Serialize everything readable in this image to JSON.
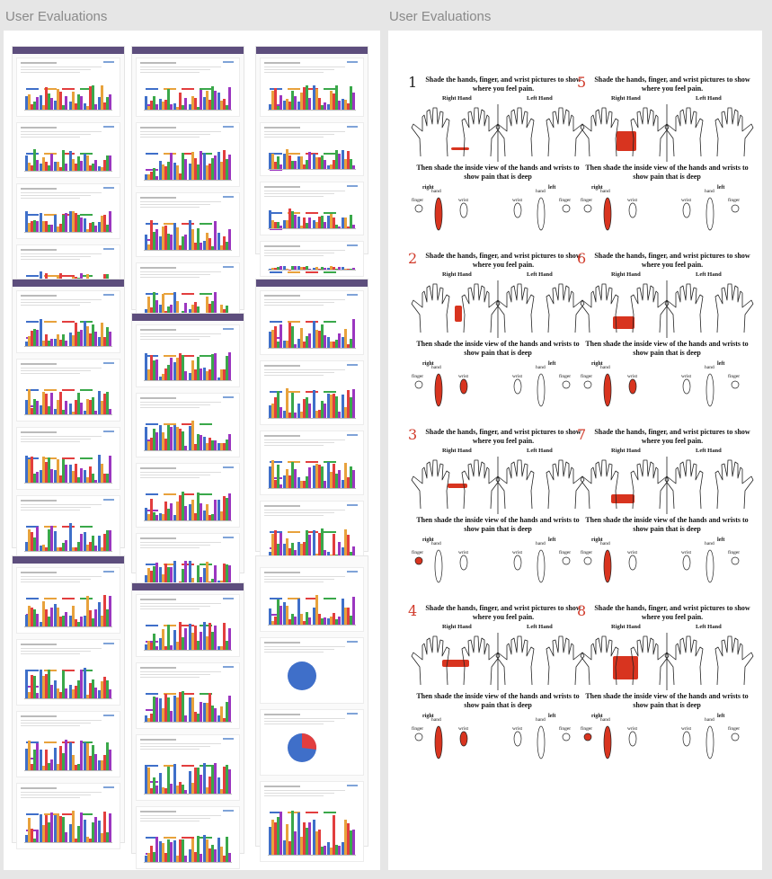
{
  "frames": {
    "left_title": "User Evaluations",
    "right_title": "User Evaluations"
  },
  "colors": {
    "header": "#5d4e7d",
    "series": [
      "#3f6fc9",
      "#e8a23c",
      "#e23e3e",
      "#3aa84a",
      "#9b36c0"
    ],
    "pain": "#d8341f"
  },
  "sheet_text": {
    "instruction": "Shade the hands, finger, and wrist pictures to show where you feel pain.",
    "right_hand": "Right Hand",
    "left_hand": "Left Hand",
    "deep_instruction": "Then shade the inside view of the hands and wrists to show pain that is deep",
    "right": "right",
    "left": "left",
    "finger": "finger",
    "hand": "hand",
    "wrist": "wrist"
  },
  "sheets": [
    {
      "number": "1",
      "numcolor": "black"
    },
    {
      "number": "5",
      "numcolor": "red"
    },
    {
      "number": "2",
      "numcolor": "red"
    },
    {
      "number": "6",
      "numcolor": "red"
    },
    {
      "number": "3",
      "numcolor": "red"
    },
    {
      "number": "7",
      "numcolor": "red"
    },
    {
      "number": "4",
      "numcolor": "red"
    },
    {
      "number": "8",
      "numcolor": "red"
    }
  ]
}
